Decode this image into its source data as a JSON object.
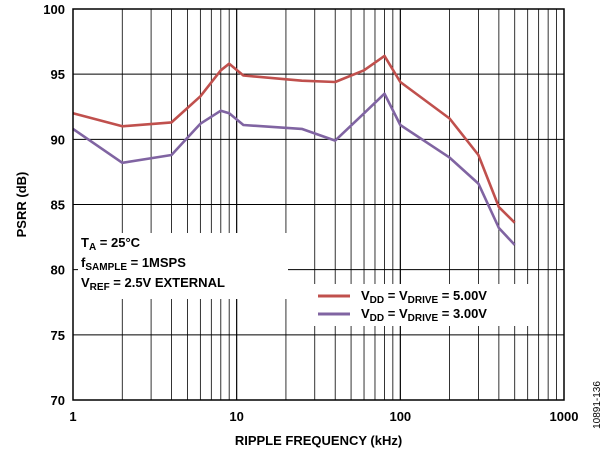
{
  "chart_data": {
    "type": "line",
    "xlabel": "RIPPLE FREQUENCY (kHz)",
    "ylabel": "PSRR (dB)",
    "x_scale": "log",
    "xlim": [
      1,
      1000
    ],
    "ylim": [
      70,
      100
    ],
    "x_ticks": [
      {
        "value": 1,
        "label": "1"
      },
      {
        "value": 10,
        "label": "10"
      },
      {
        "value": 100,
        "label": "100"
      },
      {
        "value": 1000,
        "label": "1000"
      }
    ],
    "y_ticks": [
      {
        "value": 70,
        "label": "70"
      },
      {
        "value": 75,
        "label": "75"
      },
      {
        "value": 80,
        "label": "80"
      },
      {
        "value": 85,
        "label": "85"
      },
      {
        "value": 90,
        "label": "90"
      },
      {
        "value": 95,
        "label": "95"
      },
      {
        "value": 100,
        "label": "100"
      }
    ],
    "grid": true,
    "legend_position": "lower-right",
    "annotations": [
      {
        "base": "T",
        "sub": "A",
        "rest": " = 25°C"
      },
      {
        "base": "f",
        "sub": "SAMPLE",
        "rest": " = 1MSPS"
      },
      {
        "base": "V",
        "sub": "REF",
        "rest": " = 2.5V EXTERNAL"
      }
    ],
    "series": [
      {
        "label_parts": [
          {
            "t": "V",
            "sub": false
          },
          {
            "t": "DD",
            "sub": true
          },
          {
            "t": " = V",
            "sub": false
          },
          {
            "t": "DRIVE",
            "sub": true
          },
          {
            "t": " = 5.00V",
            "sub": false
          }
        ],
        "color": "#c0504d",
        "x": [
          1,
          2,
          4,
          6,
          8,
          9,
          11,
          25,
          40,
          60,
          80,
          100,
          200,
          300,
          400,
          500
        ],
        "y": [
          92.0,
          91.0,
          91.3,
          93.3,
          95.3,
          95.8,
          94.9,
          94.5,
          94.4,
          95.3,
          96.4,
          94.4,
          91.6,
          88.8,
          84.8,
          83.6
        ]
      },
      {
        "label_parts": [
          {
            "t": "V",
            "sub": false
          },
          {
            "t": "DD",
            "sub": true
          },
          {
            "t": " = V",
            "sub": false
          },
          {
            "t": "DRIVE",
            "sub": true
          },
          {
            "t": " = 3.00V",
            "sub": false
          }
        ],
        "color": "#8064a2",
        "x": [
          1,
          2,
          4,
          6,
          8,
          9,
          11,
          25,
          40,
          60,
          80,
          100,
          200,
          300,
          400,
          500
        ],
        "y": [
          90.8,
          88.2,
          88.8,
          91.2,
          92.2,
          92.0,
          91.1,
          90.8,
          89.9,
          92.0,
          93.5,
          91.1,
          88.6,
          86.6,
          83.2,
          81.9
        ]
      }
    ],
    "figure_id": "10891-136"
  }
}
